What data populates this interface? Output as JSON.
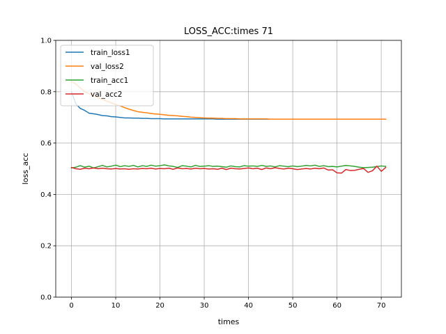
{
  "chart_data": {
    "type": "line",
    "title": "LOSS_ACC:times 71",
    "xlabel": "times",
    "ylabel": "loss_acc",
    "xlim": [
      -3.55,
      74.55
    ],
    "ylim": [
      0.0,
      1.0
    ],
    "xticks": [
      0,
      10,
      20,
      30,
      40,
      50,
      60,
      70
    ],
    "yticks": [
      0.0,
      0.2,
      0.4,
      0.6,
      0.8,
      1.0
    ],
    "ytick_labels": [
      "0.0",
      "0.2",
      "0.4",
      "0.6",
      "0.8",
      "1.0"
    ],
    "grid": true,
    "legend_position": "upper-left",
    "x": [
      0,
      1,
      2,
      3,
      4,
      5,
      6,
      7,
      8,
      9,
      10,
      11,
      12,
      13,
      14,
      15,
      16,
      17,
      18,
      19,
      20,
      21,
      22,
      23,
      24,
      25,
      26,
      27,
      28,
      29,
      30,
      31,
      32,
      33,
      34,
      35,
      36,
      37,
      38,
      39,
      40,
      41,
      42,
      43,
      44,
      45,
      46,
      47,
      48,
      49,
      50,
      51,
      52,
      53,
      54,
      55,
      56,
      57,
      58,
      59,
      60,
      61,
      62,
      63,
      64,
      65,
      66,
      67,
      68,
      69,
      70,
      71
    ],
    "series": [
      {
        "name": "train_loss1",
        "color": "#1f77b4",
        "values": [
          0.8,
          0.752,
          0.735,
          0.727,
          0.716,
          0.714,
          0.711,
          0.707,
          0.706,
          0.703,
          0.702,
          0.7,
          0.698,
          0.698,
          0.697,
          0.697,
          0.696,
          0.696,
          0.695,
          0.695,
          0.695,
          0.694,
          0.694,
          0.694,
          0.694,
          0.694,
          0.694,
          0.694,
          0.694,
          0.694,
          0.694,
          0.694,
          0.694,
          0.693,
          0.693,
          0.693,
          0.693,
          0.693,
          0.693,
          0.693,
          0.693,
          0.693,
          0.693,
          0.693,
          0.693,
          0.693,
          0.693,
          0.693,
          0.693,
          0.693,
          0.693,
          0.693,
          0.693,
          0.693,
          0.693,
          0.693,
          0.693,
          0.693,
          0.693,
          0.693,
          0.693,
          0.693,
          0.693,
          0.693,
          0.693,
          0.693,
          0.693,
          0.693,
          0.693,
          0.693,
          0.693,
          0.693
        ]
      },
      {
        "name": "val_loss2",
        "color": "#ff7f0e",
        "values": [
          0.84,
          0.83,
          0.815,
          0.8,
          0.792,
          0.784,
          0.777,
          0.77,
          0.763,
          0.757,
          0.75,
          0.745,
          0.738,
          0.732,
          0.727,
          0.722,
          0.72,
          0.718,
          0.715,
          0.713,
          0.712,
          0.71,
          0.708,
          0.707,
          0.706,
          0.704,
          0.703,
          0.701,
          0.7,
          0.699,
          0.698,
          0.697,
          0.697,
          0.696,
          0.696,
          0.695,
          0.695,
          0.695,
          0.694,
          0.694,
          0.694,
          0.694,
          0.694,
          0.694,
          0.694,
          0.693,
          0.693,
          0.693,
          0.693,
          0.693,
          0.693,
          0.693,
          0.693,
          0.693,
          0.693,
          0.693,
          0.693,
          0.693,
          0.693,
          0.693,
          0.693,
          0.693,
          0.693,
          0.693,
          0.693,
          0.693,
          0.693,
          0.693,
          0.693,
          0.693,
          0.693,
          0.693
        ]
      },
      {
        "name": "train_acc1",
        "color": "#2ca02c",
        "values": [
          0.503,
          0.506,
          0.512,
          0.506,
          0.51,
          0.503,
          0.508,
          0.513,
          0.507,
          0.51,
          0.514,
          0.508,
          0.512,
          0.509,
          0.513,
          0.507,
          0.512,
          0.509,
          0.514,
          0.51,
          0.512,
          0.515,
          0.511,
          0.509,
          0.505,
          0.512,
          0.51,
          0.507,
          0.513,
          0.509,
          0.51,
          0.512,
          0.509,
          0.51,
          0.508,
          0.506,
          0.511,
          0.508,
          0.507,
          0.512,
          0.51,
          0.511,
          0.509,
          0.513,
          0.509,
          0.511,
          0.507,
          0.512,
          0.51,
          0.508,
          0.511,
          0.508,
          0.51,
          0.513,
          0.511,
          0.514,
          0.509,
          0.512,
          0.508,
          0.509,
          0.507,
          0.51,
          0.513,
          0.511,
          0.509,
          0.506,
          0.504,
          0.505,
          0.506,
          0.508,
          0.511,
          0.509
        ]
      },
      {
        "name": "val_acc2",
        "color": "#d62728",
        "values": [
          0.505,
          0.5,
          0.498,
          0.502,
          0.5,
          0.503,
          0.5,
          0.502,
          0.5,
          0.499,
          0.501,
          0.499,
          0.5,
          0.498,
          0.5,
          0.499,
          0.501,
          0.5,
          0.502,
          0.499,
          0.501,
          0.5,
          0.502,
          0.498,
          0.503,
          0.5,
          0.501,
          0.499,
          0.502,
          0.5,
          0.501,
          0.499,
          0.5,
          0.498,
          0.502,
          0.497,
          0.502,
          0.5,
          0.499,
          0.501,
          0.503,
          0.5,
          0.502,
          0.497,
          0.503,
          0.5,
          0.504,
          0.501,
          0.499,
          0.502,
          0.5,
          0.497,
          0.499,
          0.501,
          0.499,
          0.502,
          0.5,
          0.503,
          0.495,
          0.496,
          0.484,
          0.483,
          0.497,
          0.493,
          0.494,
          0.498,
          0.501,
          0.486,
          0.492,
          0.51,
          0.49,
          0.505
        ]
      }
    ]
  }
}
